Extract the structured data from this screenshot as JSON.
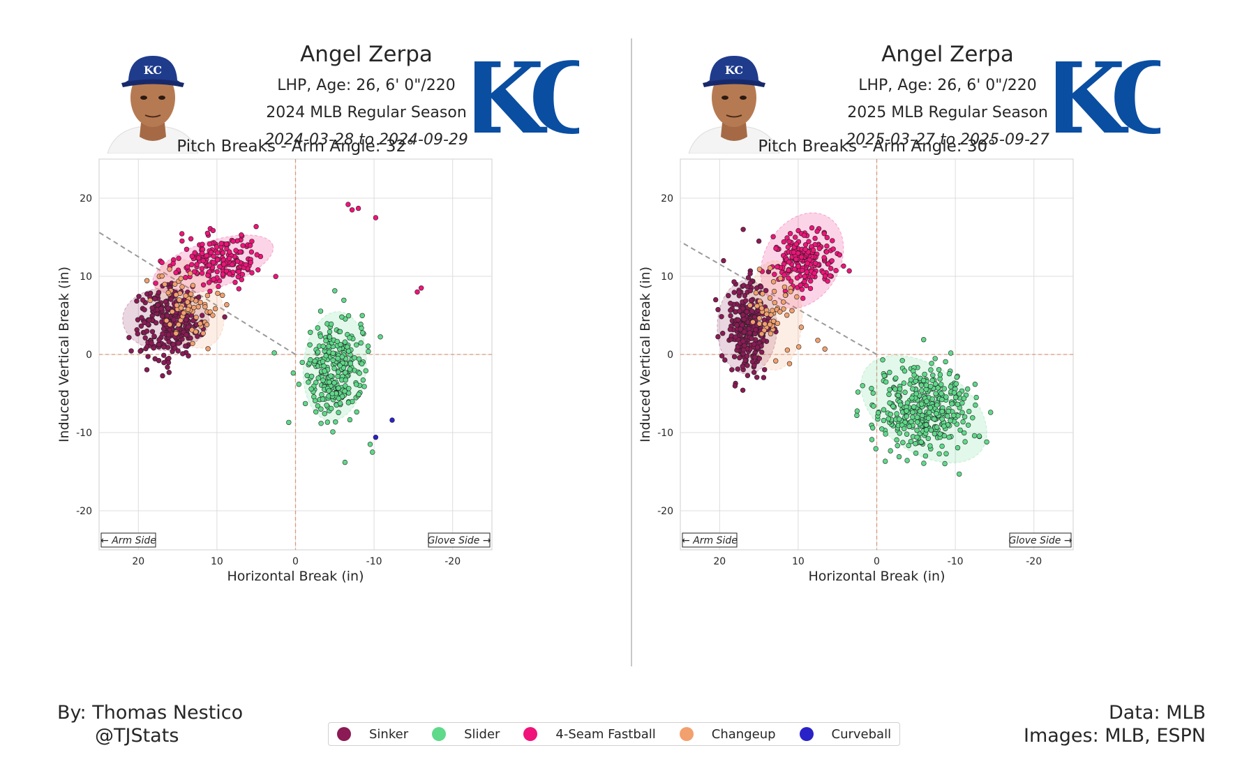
{
  "colors": {
    "Sinker": "#8b1a55",
    "Slider": "#5fd98a",
    "4-Seam Fastball": "#f0137a",
    "Changeup": "#f2a06e",
    "Curveball": "#2a22c9",
    "royals_blue": "#0a4ea2"
  },
  "panels": [
    {
      "player_name": "Angel Zerpa",
      "bio": "LHP, Age: 26, 6' 0\"/220",
      "season": "2024 MLB Regular Season",
      "date_range": "2024-03-28 to 2024-09-29",
      "headshot_icon": "player-headshot-icon",
      "logo_text": "KC",
      "cap_logo_text": "KC"
    },
    {
      "player_name": "Angel Zerpa",
      "bio": "LHP, Age: 26, 6' 0\"/220",
      "season": "2025 MLB Regular Season",
      "date_range": "2025-03-27 to 2025-09-27",
      "headshot_icon": "player-headshot-icon",
      "logo_text": "KC",
      "cap_logo_text": "KC"
    }
  ],
  "chart_data": [
    {
      "type": "scatter",
      "title": "Pitch Breaks - Arm Angle: 32°",
      "xlabel": "Horizontal Break (in)",
      "ylabel": "Induced Vertical Break (in)",
      "xlim": [
        25,
        -25
      ],
      "ylim": [
        -25,
        25
      ],
      "xticks": [
        20,
        10,
        0,
        -10,
        -20
      ],
      "yticks": [
        20,
        10,
        0,
        -10,
        -20
      ],
      "grid": true,
      "arm_angle_deg": 32,
      "arm_side_label": "← Arm Side",
      "glove_side_label": "Glove Side →",
      "series": [
        {
          "name": "Sinker",
          "centroid": [
            16,
            4
          ],
          "spread": [
            2.0,
            2.2
          ],
          "n": 260,
          "ellipse": {
            "cx": 16.5,
            "cy": 4.5,
            "rx": 5.5,
            "ry": 4.0,
            "angle": 0
          },
          "outliers": [
            [
              15.5,
              8
            ],
            [
              16,
              8.5
            ]
          ]
        },
        {
          "name": "4-Seam Fastball",
          "centroid": [
            10,
            12
          ],
          "spread": [
            2.6,
            1.6
          ],
          "n": 190,
          "ellipse": {
            "cx": 10.5,
            "cy": 11.5,
            "rx": 8.0,
            "ry": 3.0,
            "angle": -18
          },
          "outliers": [
            [
              -6.7,
              19.2
            ],
            [
              -7.2,
              18.5
            ],
            [
              -8,
              18.7
            ],
            [
              -10.2,
              17.5
            ],
            [
              -15.5,
              8
            ],
            [
              -16,
              8.5
            ]
          ]
        },
        {
          "name": "Changeup",
          "centroid": [
            13.5,
            6.5
          ],
          "spread": [
            2.0,
            2.6
          ],
          "n": 70,
          "ellipse": {
            "cx": 13.5,
            "cy": 6.5,
            "rx": 4.0,
            "ry": 6.0,
            "angle": -25
          }
        },
        {
          "name": "Slider",
          "centroid": [
            -5,
            -2
          ],
          "spread": [
            2.0,
            3.2
          ],
          "n": 270,
          "ellipse": {
            "cx": -5,
            "cy": -1.5,
            "rx": 4.0,
            "ry": 7.0,
            "angle": 5
          },
          "outliers": [
            [
              2.7,
              0.2
            ],
            [
              -6.3,
              -13.8
            ],
            [
              -9.5,
              -11.5
            ],
            [
              -9.8,
              -12.5
            ]
          ]
        },
        {
          "name": "Curveball",
          "points": [
            [
              -12.3,
              -8.4
            ],
            [
              -10.2,
              -10.6
            ]
          ]
        }
      ]
    },
    {
      "type": "scatter",
      "title": "Pitch Breaks - Arm Angle: 30°",
      "xlabel": "Horizontal Break (in)",
      "ylabel": "Induced Vertical Break (in)",
      "xlim": [
        25,
        -25
      ],
      "ylim": [
        -25,
        25
      ],
      "xticks": [
        20,
        10,
        0,
        -10,
        -20
      ],
      "yticks": [
        20,
        10,
        0,
        -10,
        -20
      ],
      "grid": true,
      "arm_angle_deg": 30,
      "arm_side_label": "← Arm Side",
      "glove_side_label": "Glove Side →",
      "series": [
        {
          "name": "Sinker",
          "centroid": [
            16.5,
            3.5
          ],
          "spread": [
            1.4,
            2.8
          ],
          "n": 310,
          "ellipse": {
            "cx": 16.5,
            "cy": 3.5,
            "rx": 3.8,
            "ry": 6.0,
            "angle": 0
          },
          "outliers": [
            [
              19.5,
              12
            ],
            [
              17,
              16
            ],
            [
              15,
              14.5
            ],
            [
              20.5,
              7
            ]
          ]
        },
        {
          "name": "4-Seam Fastball",
          "centroid": [
            9.5,
            12
          ],
          "spread": [
            1.9,
            1.8
          ],
          "n": 210,
          "ellipse": {
            "cx": 9.5,
            "cy": 12,
            "rx": 4.8,
            "ry": 6.5,
            "angle": 30
          }
        },
        {
          "name": "Changeup",
          "centroid": [
            13,
            5
          ],
          "spread": [
            1.5,
            2.5
          ],
          "n": 55,
          "ellipse": {
            "cx": 13,
            "cy": 5,
            "rx": 3.5,
            "ry": 7.0,
            "angle": 0
          },
          "outliers": [
            [
              7.5,
              1.8
            ],
            [
              6.6,
              0.7
            ]
          ]
        },
        {
          "name": "Slider",
          "centroid": [
            -6,
            -7
          ],
          "spread": [
            3.0,
            2.6
          ],
          "n": 400,
          "ellipse": {
            "cx": -6,
            "cy": -7,
            "rx": 9.0,
            "ry": 5.5,
            "angle": 35
          },
          "outliers": [
            [
              1.8,
              -4
            ],
            [
              -10.5,
              -15.3
            ],
            [
              -14,
              -11.2
            ]
          ]
        }
      ]
    }
  ],
  "legend": {
    "items": [
      "Sinker",
      "Slider",
      "4-Seam Fastball",
      "Changeup",
      "Curveball"
    ]
  },
  "footer": {
    "author": "By: Thomas Nestico",
    "handle": "@TJStats",
    "data_source": "Data: MLB",
    "images_source": "Images: MLB, ESPN"
  }
}
